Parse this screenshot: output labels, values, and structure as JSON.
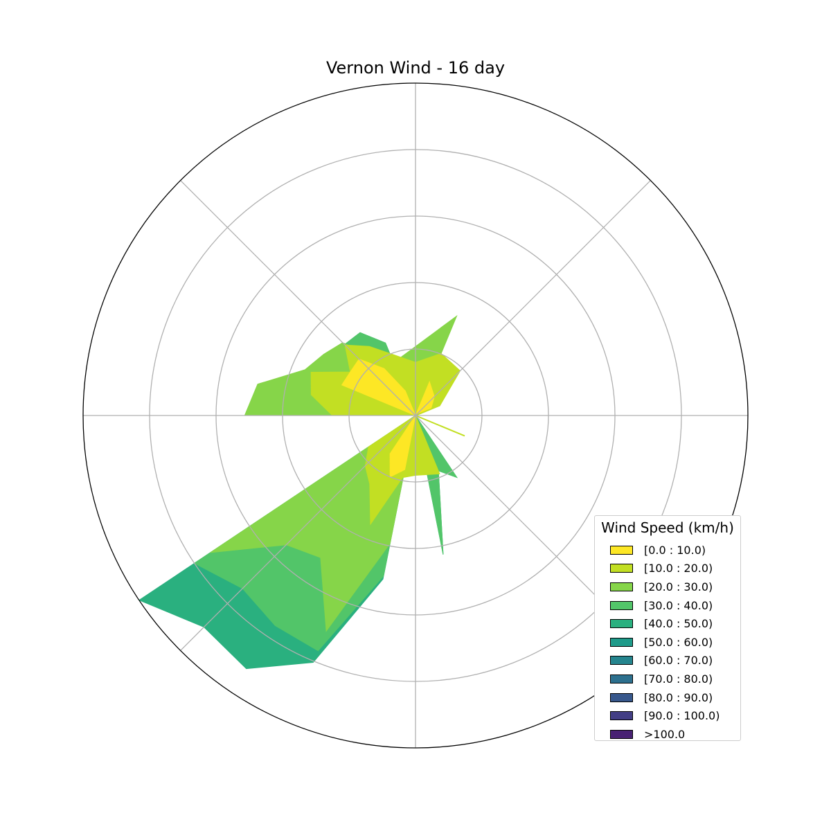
{
  "chart_data": {
    "type": "windrose",
    "title": "Vernon Wind - 16 day",
    "legend": {
      "title": "Wind Speed (km/h)",
      "placement": "bottom-right",
      "bins": [
        {
          "label": "[0.0 : 10.0)",
          "color": "#fde725"
        },
        {
          "label": "[10.0 : 20.0)",
          "color": "#c2df23"
        },
        {
          "label": "[20.0 : 30.0)",
          "color": "#86d549"
        },
        {
          "label": "[30.0 : 40.0)",
          "color": "#52c569"
        },
        {
          "label": "[40.0 : 50.0)",
          "color": "#2ab07f"
        },
        {
          "label": "[50.0 : 60.0)",
          "color": "#1e9b8a"
        },
        {
          "label": "[60.0 : 70.0)",
          "color": "#25858e"
        },
        {
          "label": "[70.0 : 80.0)",
          "color": "#2d708e"
        },
        {
          "label": "[80.0 : 90.0)",
          "color": "#38588c"
        },
        {
          "label": "[90.0 : 100.0)",
          "color": "#433e85"
        },
        {
          "label": ">100.0",
          "color": "#482173"
        }
      ]
    },
    "direction_unit": "degrees clockwise from north",
    "radius_max": 5.0,
    "grid": true,
    "angular_grid_deg": [
      0,
      45,
      90,
      135,
      180,
      225,
      270,
      315
    ],
    "radial_grid": [
      1,
      2,
      3,
      4,
      5
    ],
    "series": [
      {
        "name": "[40.0 : 50.0)",
        "color": "#2ab07f",
        "points": [
          [
            326.25,
            1.5
          ],
          [
            337.5,
            1.18
          ],
          [
            0,
            0
          ],
          [
            146.25,
            1.12
          ],
          [
            157.5,
            0.9
          ],
          [
            168.75,
            2.13
          ],
          [
            180,
            0
          ],
          [
            191.25,
            2.51
          ],
          [
            202.5,
            4.02
          ],
          [
            213.75,
            4.58
          ],
          [
            225,
            4.5
          ],
          [
            236.25,
            5.0
          ],
          [
            247.5,
            0
          ],
          [
            258.75,
            0
          ],
          [
            270,
            2.6
          ],
          [
            281.25,
            0
          ],
          [
            292.5,
            0
          ],
          [
            303.75,
            1.58
          ]
        ]
      },
      {
        "name": "[30.0 : 40.0)",
        "color": "#52c569",
        "points": [
          [
            326.25,
            1.5
          ],
          [
            337.5,
            1.18
          ],
          [
            0,
            0
          ],
          [
            146.25,
            1.12
          ],
          [
            157.5,
            0.9
          ],
          [
            168.75,
            2.13
          ],
          [
            180,
            0
          ],
          [
            191.25,
            2.46
          ],
          [
            202.5,
            3.83
          ],
          [
            213.75,
            3.8
          ],
          [
            225,
            3.68
          ],
          [
            236.25,
            4.0
          ],
          [
            247.5,
            0
          ],
          [
            258.75,
            0
          ],
          [
            270,
            2.5
          ],
          [
            281.25,
            0
          ],
          [
            292.5,
            0
          ],
          [
            303.75,
            1.58
          ]
        ]
      },
      {
        "name": "[20.0 : 30.0)",
        "color": "#86d549",
        "points": [
          [
            326.25,
            1.05
          ],
          [
            337.5,
            0.86
          ],
          [
            22.5,
            1.62
          ],
          [
            45,
            0
          ],
          [
            157.5,
            0.85
          ],
          [
            168.75,
            0.77
          ],
          [
            180,
            0
          ],
          [
            191.25,
            1.96
          ],
          [
            202.5,
            3.51
          ],
          [
            213.75,
            2.57
          ],
          [
            225,
            2.75
          ],
          [
            236.25,
            3.71
          ],
          [
            247.5,
            0
          ],
          [
            258.75,
            0
          ],
          [
            270,
            2.57
          ],
          [
            281.25,
            2.42
          ],
          [
            292.5,
            1.8
          ],
          [
            303.75,
            1.66
          ],
          [
            315,
            1.55
          ]
        ]
      },
      {
        "name": "[10.0 : 20.0)",
        "color": "#c2df23",
        "points": [
          [
            326.25,
            1.25
          ],
          [
            337.5,
            1.01
          ],
          [
            0,
            0.8
          ],
          [
            22.5,
            1.01
          ],
          [
            45,
            0.95
          ],
          [
            67.5,
            0.4
          ],
          [
            90,
            0
          ],
          [
            112.5,
            0.8
          ],
          [
            135,
            0
          ],
          [
            157.5,
            0.95
          ],
          [
            180,
            0.9
          ],
          [
            202.5,
            1.05
          ],
          [
            191.25,
            0.93
          ],
          [
            202.5,
            1.77
          ],
          [
            213.75,
            1.24
          ],
          [
            225,
            1.07
          ],
          [
            236.25,
            0.85
          ],
          [
            247.5,
            0
          ],
          [
            258.75,
            0
          ],
          [
            270,
            1.25
          ],
          [
            281.25,
            1.6
          ],
          [
            292.5,
            1.7
          ],
          [
            303.75,
            1.18
          ],
          [
            315,
            1.5
          ]
        ]
      },
      {
        "name": "[0.0 : 10.0)",
        "color": "#fde725",
        "points": [
          [
            315,
            1.2
          ],
          [
            326.25,
            0.85
          ],
          [
            337.5,
            0.4
          ],
          [
            0,
            0
          ],
          [
            22.5,
            0.55
          ],
          [
            45,
            0.4
          ],
          [
            67.5,
            0.25
          ],
          [
            90,
            0
          ],
          [
            112.5,
            0.25
          ],
          [
            135,
            0
          ],
          [
            157.5,
            0
          ],
          [
            180,
            0
          ],
          [
            191.25,
            0.83
          ],
          [
            202.5,
            1.0
          ],
          [
            213.75,
            0.69
          ],
          [
            225,
            0
          ],
          [
            247.5,
            0
          ],
          [
            270,
            0.9
          ],
          [
            281.25,
            0
          ],
          [
            292.5,
            1.2
          ],
          [
            303.75,
            1.18
          ]
        ]
      }
    ],
    "spokes": [
      {
        "direction": 67.5,
        "length": 0.4,
        "color": "#c2df23"
      },
      {
        "direction": 112.5,
        "length": 0.8,
        "color": "#c2df23"
      }
    ]
  }
}
